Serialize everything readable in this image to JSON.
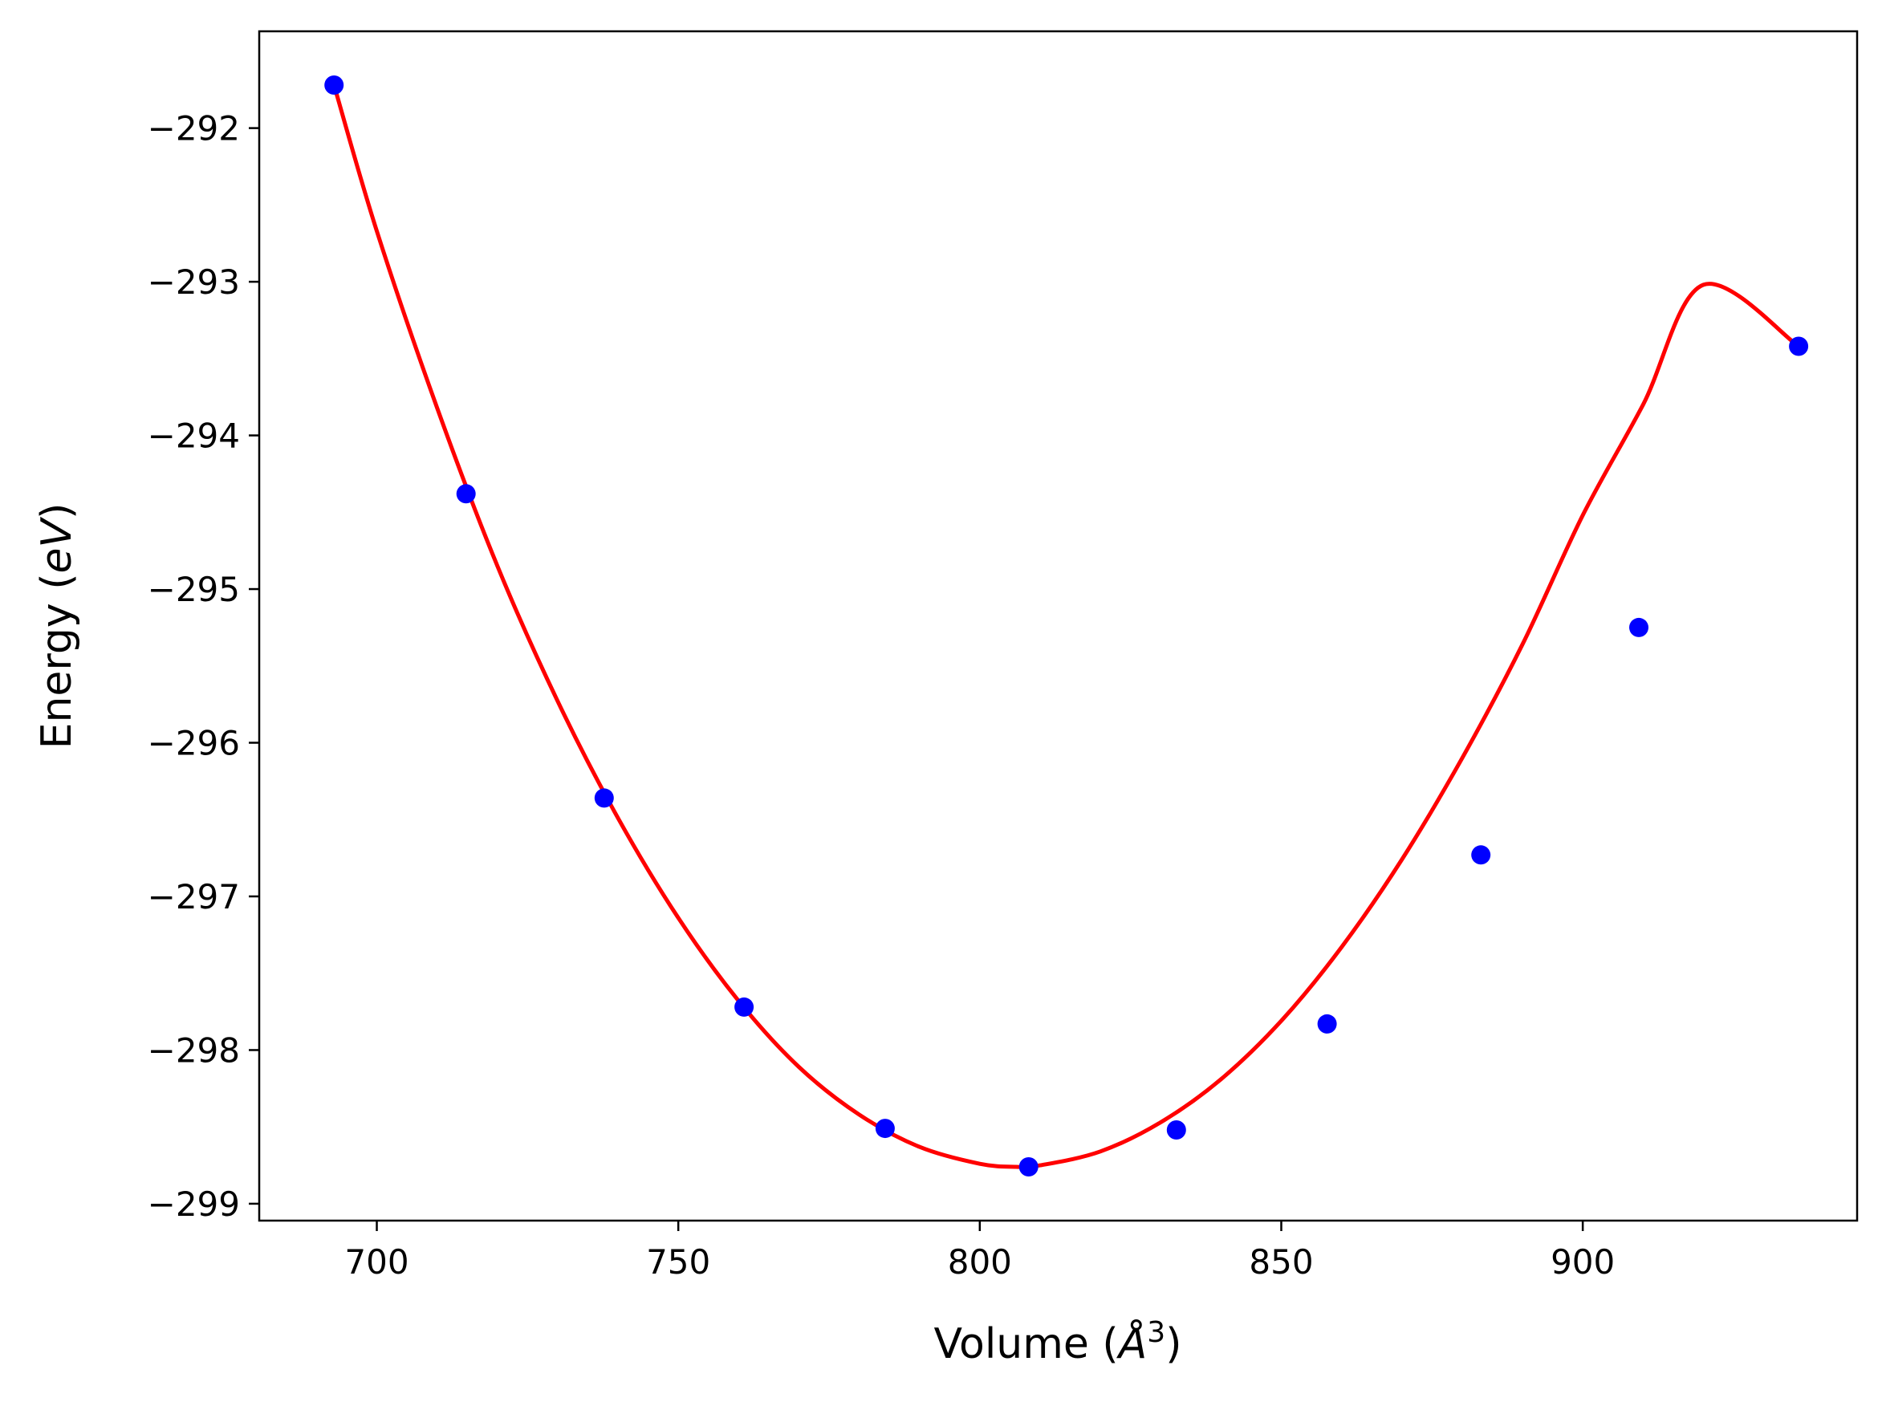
{
  "chart_data": {
    "type": "scatter",
    "title": "",
    "xlabel_main": "Volume (",
    "xlabel_unit": "Å",
    "xlabel_sup": "3",
    "xlabel_close": ")",
    "ylabel_main": "Energy (",
    "ylabel_unit": "eV",
    "ylabel_close": ")",
    "xlim": [
      680.5,
      945.5
    ],
    "ylim": [
      -299.11,
      -291.37
    ],
    "x_ticks": [
      700,
      750,
      800,
      850,
      900
    ],
    "x_tick_labels": [
      "700",
      "750",
      "800",
      "850",
      "900"
    ],
    "y_ticks": [
      -292,
      -293,
      -294,
      -295,
      -296,
      -297,
      -298,
      -299
    ],
    "y_tick_labels": [
      "−292",
      "−293",
      "−294",
      "−295",
      "−296",
      "−297",
      "−298",
      "−299"
    ],
    "grid": false,
    "series": [
      {
        "kind": "points",
        "color": "#0000ff",
        "x": [
          692.9,
          714.8,
          737.7,
          760.9,
          784.3,
          808.1,
          832.6,
          857.6,
          883.1,
          909.3,
          935.8
        ],
        "y": [
          -291.72,
          -294.38,
          -296.36,
          -297.72,
          -298.51,
          -298.76,
          -298.52,
          -297.83,
          -296.73,
          -295.25,
          -293.42
        ]
      },
      {
        "kind": "fit-line",
        "color": "#ff0000",
        "x": [
          692.9,
          700,
          710,
          720,
          730,
          740,
          750,
          760,
          770,
          780,
          790,
          800,
          806,
          810,
          820,
          830,
          840,
          850,
          860,
          870,
          880,
          890,
          900,
          910,
          920,
          935.8
        ],
        "y": [
          -291.72,
          -292.67,
          -293.82,
          -294.85,
          -295.73,
          -296.49,
          -297.14,
          -297.68,
          -298.11,
          -298.42,
          -298.63,
          -298.74,
          -298.76,
          -298.75,
          -298.66,
          -298.47,
          -298.19,
          -297.81,
          -297.33,
          -296.76,
          -296.1,
          -295.36,
          -294.52,
          -293.8,
          -293.02,
          -293.42
        ]
      }
    ]
  }
}
